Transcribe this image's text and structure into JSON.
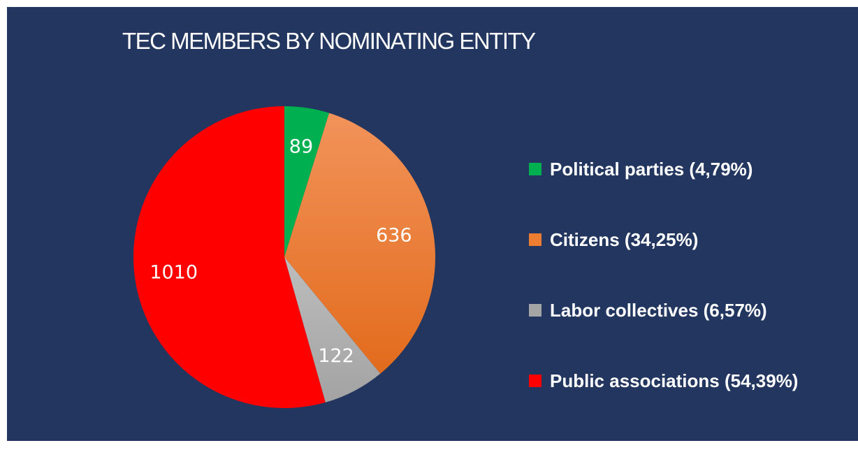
{
  "chart_data": {
    "type": "pie",
    "title": "TEC MEMBERS BY NOMINATING ENTITY",
    "legend_position": "right",
    "slices": [
      {
        "label": "Political parties (4,79%)",
        "value": 89,
        "value_label": "89",
        "color": "#00b050"
      },
      {
        "label": "Citizens (34,25%)",
        "value": 636,
        "value_label": "636",
        "color": "#ed7d31"
      },
      {
        "label": "Labor collectives (6,57%)",
        "value": 122,
        "value_label": "122",
        "color": "#a5a5a5"
      },
      {
        "label": "Public associations (54,39%)",
        "value": 1010,
        "value_label": "1010",
        "color": "#ff0000"
      }
    ]
  }
}
